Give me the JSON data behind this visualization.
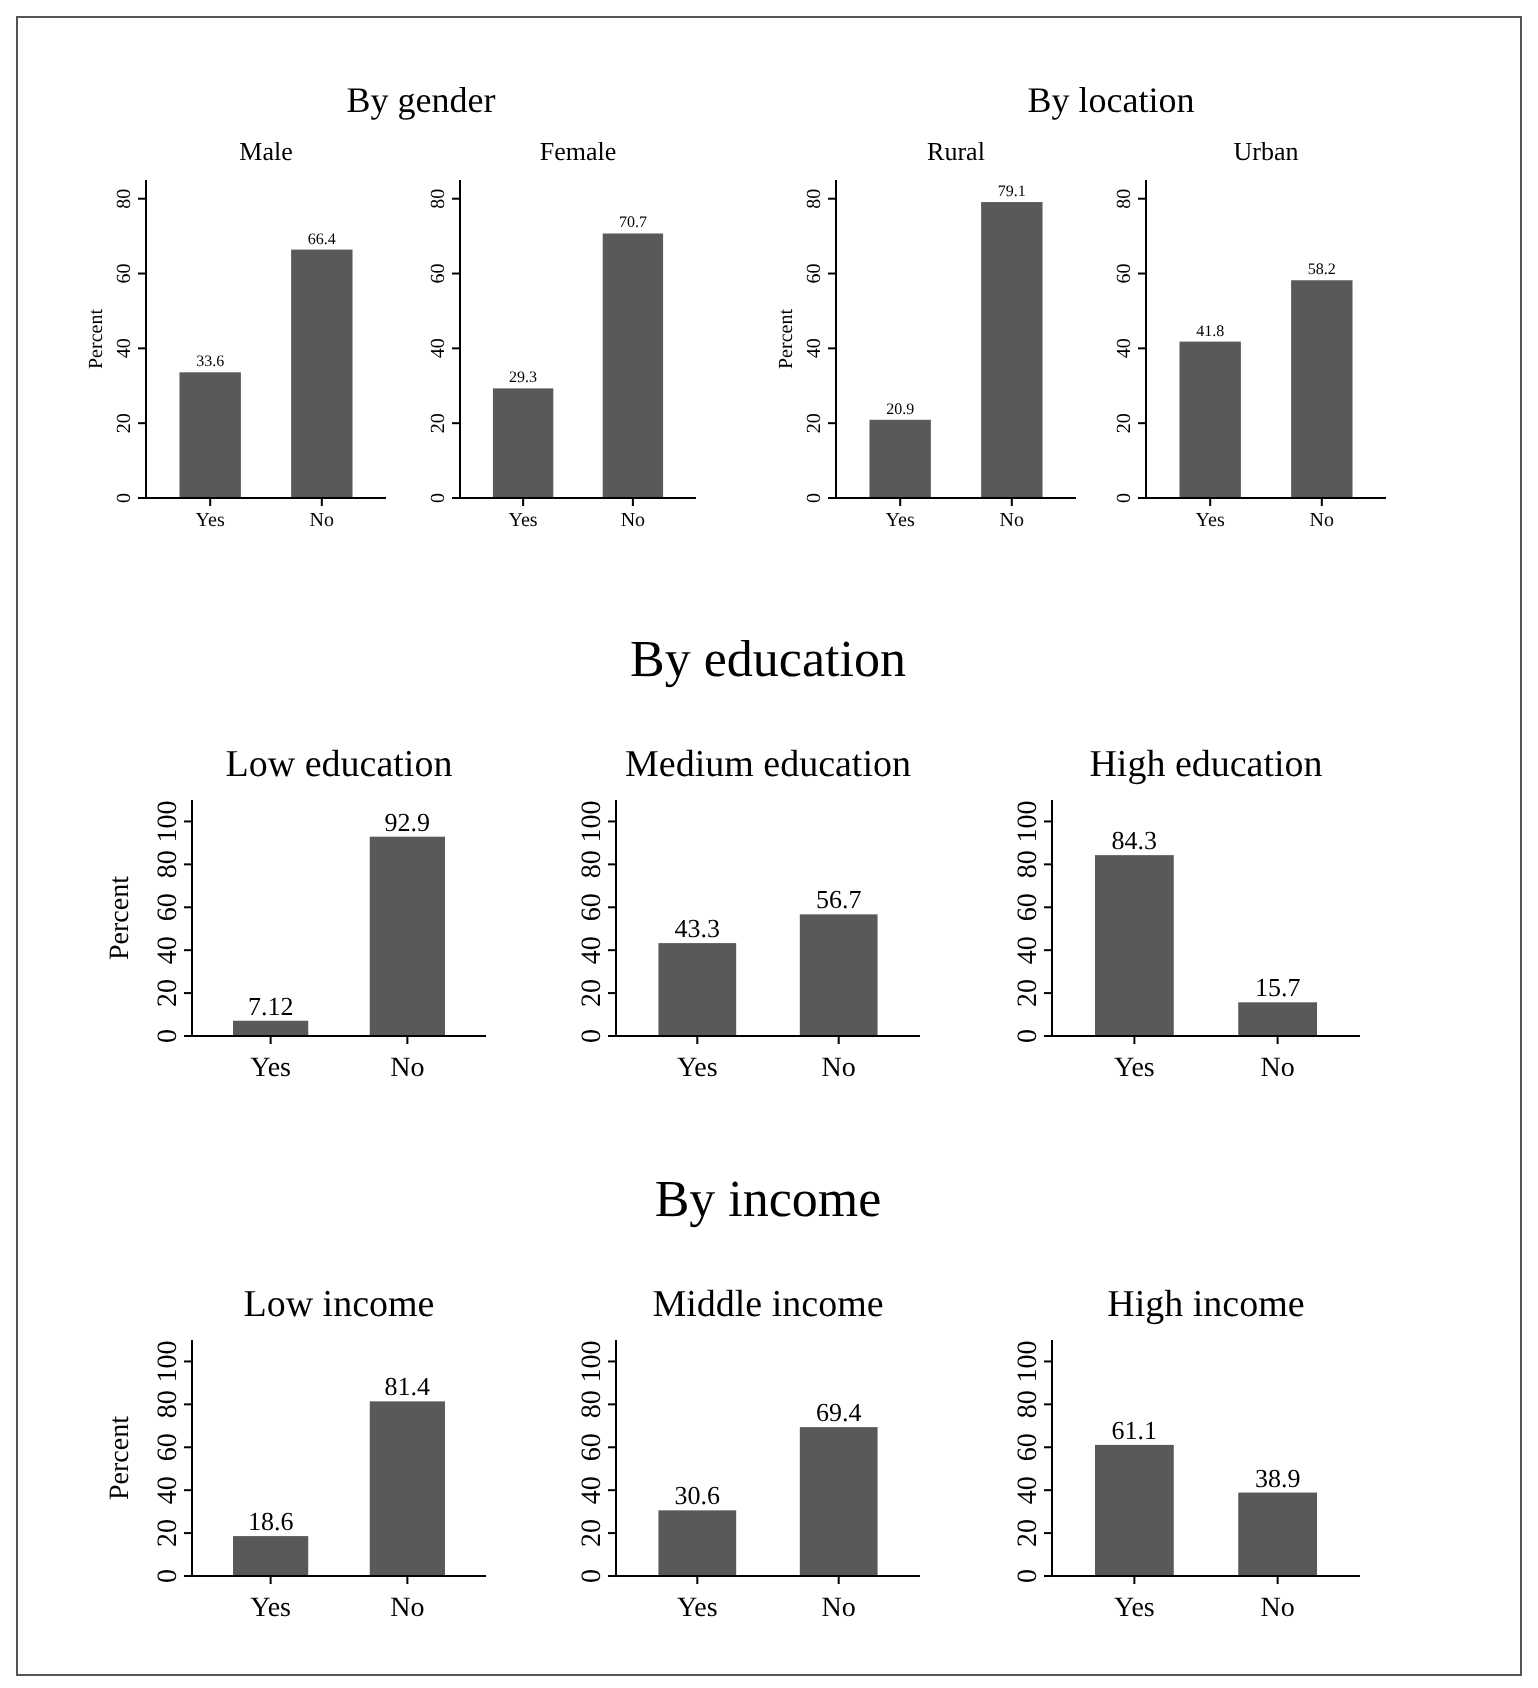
{
  "chart_data": [
    {
      "type": "bar",
      "title": "By gender",
      "subtitle": "Male",
      "ylabel": "Percent",
      "categories": [
        "Yes",
        "No"
      ],
      "values": [
        33.6,
        66.4
      ],
      "color": "#595959",
      "ylim": [
        0,
        85
      ],
      "yticks": [
        0,
        20,
        40,
        60,
        80
      ],
      "data_labels": true
    },
    {
      "type": "bar",
      "subtitle": "Female",
      "categories": [
        "Yes",
        "No"
      ],
      "values": [
        29.3,
        70.7
      ],
      "color": "#595959",
      "ylim": [
        0,
        85
      ],
      "yticks": [
        0,
        20,
        40,
        60,
        80
      ],
      "data_labels": true
    },
    {
      "type": "bar",
      "title": "By location",
      "subtitle": "Rural",
      "ylabel": "Percent",
      "categories": [
        "Yes",
        "No"
      ],
      "values": [
        20.9,
        79.1
      ],
      "color": "#595959",
      "ylim": [
        0,
        85
      ],
      "yticks": [
        0,
        20,
        40,
        60,
        80
      ],
      "data_labels": true
    },
    {
      "type": "bar",
      "subtitle": "Urban",
      "categories": [
        "Yes",
        "No"
      ],
      "values": [
        41.8,
        58.2
      ],
      "color": "#595959",
      "ylim": [
        0,
        85
      ],
      "yticks": [
        0,
        20,
        40,
        60,
        80
      ],
      "data_labels": true
    },
    {
      "type": "bar",
      "subtitle": "Low education",
      "ylabel": "Percent",
      "categories": [
        "Yes",
        "No"
      ],
      "values": [
        7.12,
        92.9
      ],
      "color": "#595959",
      "ylim": [
        0,
        110
      ],
      "yticks": [
        0,
        20,
        40,
        60,
        80,
        100
      ],
      "data_labels": true
    },
    {
      "type": "bar",
      "title": "By education",
      "subtitle": "Medium education",
      "categories": [
        "Yes",
        "No"
      ],
      "values": [
        43.3,
        56.7
      ],
      "color": "#595959",
      "ylim": [
        0,
        110
      ],
      "yticks": [
        0,
        20,
        40,
        60,
        80,
        100
      ],
      "data_labels": true
    },
    {
      "type": "bar",
      "subtitle": "High education",
      "categories": [
        "Yes",
        "No"
      ],
      "values": [
        84.3,
        15.7
      ],
      "color": "#595959",
      "ylim": [
        0,
        110
      ],
      "yticks": [
        0,
        20,
        40,
        60,
        80,
        100
      ],
      "data_labels": true
    },
    {
      "type": "bar",
      "subtitle": "Low income",
      "ylabel": "Percent",
      "categories": [
        "Yes",
        "No"
      ],
      "values": [
        18.6,
        81.4
      ],
      "color": "#595959",
      "ylim": [
        0,
        110
      ],
      "yticks": [
        0,
        20,
        40,
        60,
        80,
        100
      ],
      "data_labels": true
    },
    {
      "type": "bar",
      "title": "By income",
      "subtitle": "Middle income",
      "categories": [
        "Yes",
        "No"
      ],
      "values": [
        30.6,
        69.4
      ],
      "color": "#595959",
      "ylim": [
        0,
        110
      ],
      "yticks": [
        0,
        20,
        40,
        60,
        80,
        100
      ],
      "data_labels": true
    },
    {
      "type": "bar",
      "subtitle": "High income",
      "categories": [
        "Yes",
        "No"
      ],
      "values": [
        61.1,
        38.9
      ],
      "color": "#595959",
      "ylim": [
        0,
        110
      ],
      "yticks": [
        0,
        20,
        40,
        60,
        80,
        100
      ],
      "data_labels": true
    }
  ]
}
